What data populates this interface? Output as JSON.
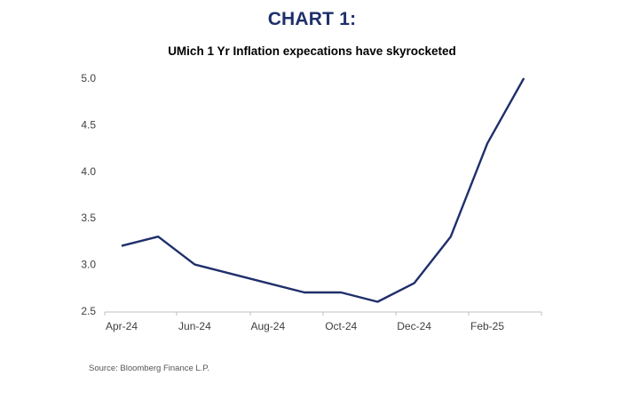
{
  "header": {
    "title": "CHART 1:",
    "subtitle": "UMich 1 Yr Inflation expecations have skyrocketed"
  },
  "footer": {
    "source": "Source: Bloomberg Finance L.P."
  },
  "colors": {
    "title": "#1f2f6b",
    "line": "#1f2f6b",
    "axis": "#bfbfbf",
    "tick_text": "#404040"
  },
  "chart_data": {
    "type": "line",
    "title": "UMich 1 Yr Inflation expecations have skyrocketed",
    "xlabel": "",
    "ylabel": "",
    "x": [
      "2024-04",
      "2024-05",
      "2024-06",
      "2024-07",
      "2024-08",
      "2024-09",
      "2024-10",
      "2024-11",
      "2024-12",
      "2025-01",
      "2025-02",
      "2025-03"
    ],
    "x_tick_labels": [
      "Apr-24",
      "Jun-24",
      "Aug-24",
      "Oct-24",
      "Dec-24",
      "Feb-25"
    ],
    "x_tick_index": [
      0,
      2,
      4,
      6,
      8,
      10
    ],
    "series": [
      {
        "values": [
          3.2,
          3.3,
          3.0,
          2.9,
          2.8,
          2.7,
          2.7,
          2.6,
          2.8,
          3.3,
          4.3,
          5.0
        ]
      }
    ],
    "ylim": [
      2.5,
      5.0
    ],
    "y_ticks": [
      "2.5",
      "3.0",
      "3.5",
      "4.0",
      "4.5",
      "5.0"
    ],
    "grid": false,
    "legend": "none"
  }
}
